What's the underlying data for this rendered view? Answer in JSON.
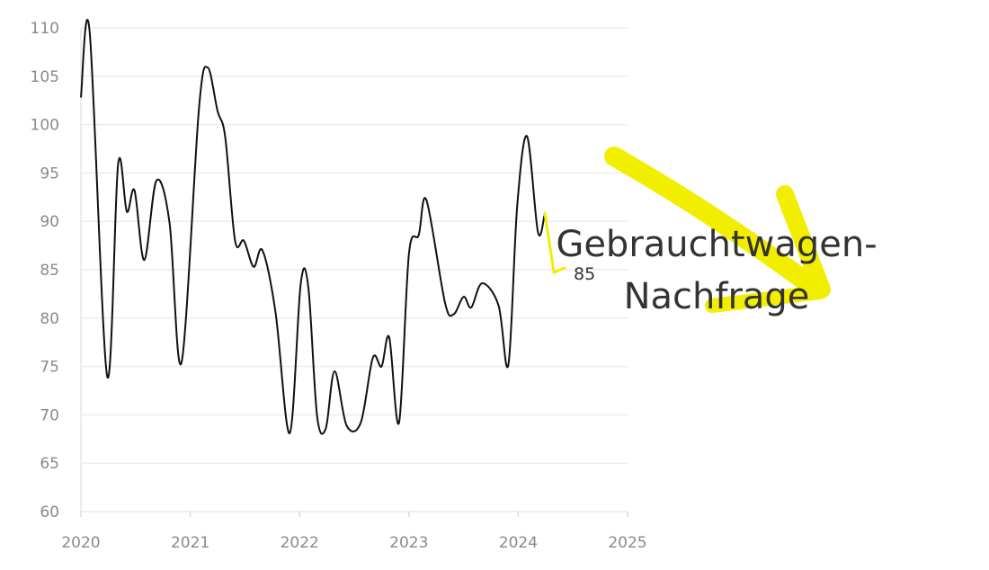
{
  "chart_data": {
    "type": "line",
    "title": "Gebrauchtwagen-Nachfrage",
    "title_lines": [
      "Gebrauchtwagen-",
      "Nachfrage"
    ],
    "xlabel": "",
    "ylabel": "",
    "xlim": [
      2020,
      2025
    ],
    "ylim": [
      60,
      110
    ],
    "x_ticks": [
      "2020",
      "2021",
      "2022",
      "2023",
      "2024",
      "2025"
    ],
    "y_ticks": [
      "60",
      "65",
      "70",
      "75",
      "80",
      "85",
      "90",
      "95",
      "100",
      "105",
      "110"
    ],
    "grid": "horizontal",
    "line_color": "#111111",
    "accent_color": "#f2ee00",
    "annotation": {
      "label": "85",
      "value": 85
    },
    "series": [
      {
        "points": [
          [
            2020.0,
            102.8
          ],
          [
            2020.08,
            109.6
          ],
          [
            2020.24,
            74.0
          ],
          [
            2020.34,
            95.9
          ],
          [
            2020.42,
            91.0
          ],
          [
            2020.49,
            93.2
          ],
          [
            2020.58,
            86.0
          ],
          [
            2020.69,
            94.2
          ],
          [
            2020.81,
            89.9
          ],
          [
            2020.92,
            75.4
          ],
          [
            2021.08,
            101.7
          ],
          [
            2021.16,
            105.9
          ],
          [
            2021.25,
            101.4
          ],
          [
            2021.32,
            98.7
          ],
          [
            2021.41,
            88.0
          ],
          [
            2021.49,
            88.0
          ],
          [
            2021.58,
            85.3
          ],
          [
            2021.66,
            87.0
          ],
          [
            2021.78,
            80.6
          ],
          [
            2021.91,
            68.1
          ],
          [
            2022.01,
            83.5
          ],
          [
            2022.08,
            83.2
          ],
          [
            2022.16,
            69.9
          ],
          [
            2022.24,
            68.6
          ],
          [
            2022.32,
            74.5
          ],
          [
            2022.43,
            68.9
          ],
          [
            2022.56,
            69.2
          ],
          [
            2022.67,
            75.9
          ],
          [
            2022.75,
            75.0
          ],
          [
            2022.82,
            78.0
          ],
          [
            2022.91,
            69.2
          ],
          [
            2023.0,
            86.6
          ],
          [
            2023.09,
            88.6
          ],
          [
            2023.16,
            92.2
          ],
          [
            2023.33,
            81.6
          ],
          [
            2023.41,
            80.4
          ],
          [
            2023.5,
            82.2
          ],
          [
            2023.57,
            81.1
          ],
          [
            2023.67,
            83.6
          ],
          [
            2023.82,
            81.3
          ],
          [
            2023.91,
            75.2
          ],
          [
            2023.99,
            91.5
          ],
          [
            2024.08,
            98.8
          ],
          [
            2024.18,
            88.9
          ],
          [
            2024.24,
            90.6
          ]
        ]
      }
    ]
  }
}
